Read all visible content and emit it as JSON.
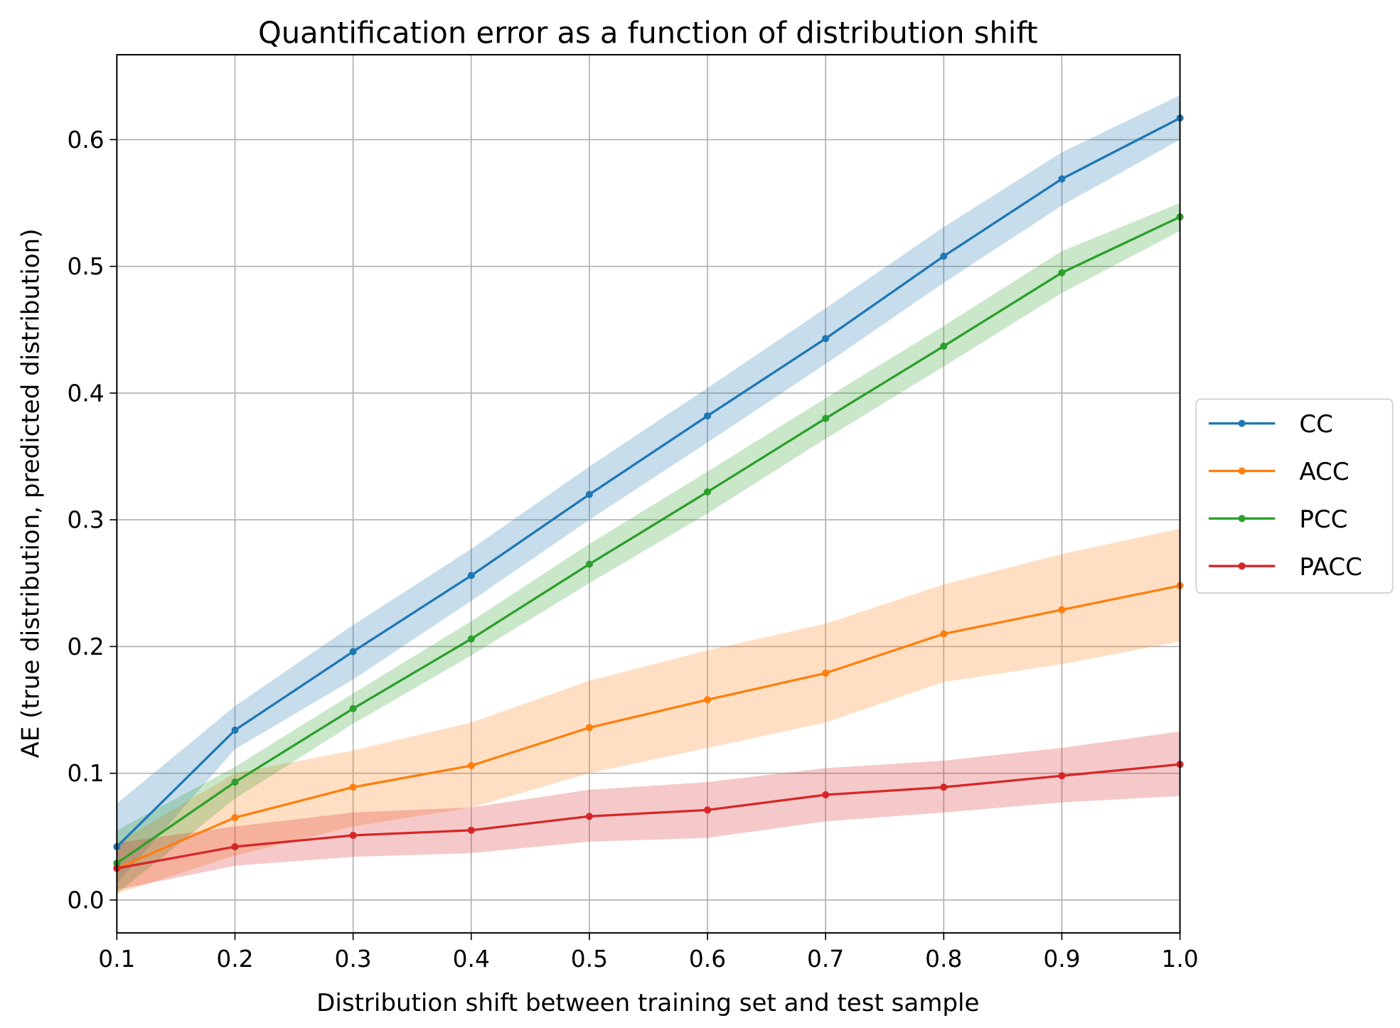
{
  "chart_data": {
    "type": "line",
    "title": "Quantification error as a function of distribution shift",
    "xlabel": "Distribution shift between training set and test sample",
    "ylabel": "AE (true distribution, predicted distribution)",
    "xlim": [
      0.1,
      1.0
    ],
    "ylim": [
      -0.026,
      0.667
    ],
    "grid": true,
    "legend_position": "right-outside",
    "x": [
      0.1,
      0.2,
      0.3,
      0.4,
      0.5,
      0.6,
      0.7,
      0.8,
      0.9,
      1.0
    ],
    "xticks": [
      "0.1",
      "0.2",
      "0.3",
      "0.4",
      "0.5",
      "0.6",
      "0.7",
      "0.8",
      "0.9",
      "1.0"
    ],
    "yticks": [
      {
        "value": 0.0,
        "label": "0.0"
      },
      {
        "value": 0.1,
        "label": "0.1"
      },
      {
        "value": 0.2,
        "label": "0.2"
      },
      {
        "value": 0.3,
        "label": "0.3"
      },
      {
        "value": 0.4,
        "label": "0.4"
      },
      {
        "value": 0.5,
        "label": "0.5"
      },
      {
        "value": 0.6,
        "label": "0.6"
      }
    ],
    "series": [
      {
        "name": "CC",
        "color": "#1f77b4",
        "values": [
          0.042,
          0.134,
          0.196,
          0.256,
          0.32,
          0.382,
          0.443,
          0.508,
          0.569,
          0.617
        ],
        "upper": [
          0.076,
          0.153,
          0.217,
          0.277,
          0.342,
          0.404,
          0.467,
          0.531,
          0.59,
          0.635
        ],
        "lower": [
          0.013,
          0.119,
          0.174,
          0.236,
          0.3,
          0.361,
          0.423,
          0.487,
          0.548,
          0.6
        ]
      },
      {
        "name": "ACC",
        "color": "#ff7f0e",
        "values": [
          0.025,
          0.065,
          0.089,
          0.106,
          0.136,
          0.158,
          0.179,
          0.21,
          0.229,
          0.248
        ],
        "upper": [
          0.045,
          0.1,
          0.118,
          0.14,
          0.173,
          0.197,
          0.218,
          0.249,
          0.273,
          0.293
        ],
        "lower": [
          0.005,
          0.035,
          0.058,
          0.073,
          0.1,
          0.12,
          0.14,
          0.172,
          0.186,
          0.204
        ]
      },
      {
        "name": "PCC",
        "color": "#2ca02c",
        "values": [
          0.029,
          0.093,
          0.151,
          0.206,
          0.265,
          0.322,
          0.38,
          0.437,
          0.495,
          0.539
        ],
        "upper": [
          0.055,
          0.105,
          0.163,
          0.22,
          0.281,
          0.338,
          0.396,
          0.453,
          0.512,
          0.55
        ],
        "lower": [
          0.005,
          0.08,
          0.139,
          0.193,
          0.25,
          0.305,
          0.364,
          0.421,
          0.479,
          0.528
        ]
      },
      {
        "name": "PACC",
        "color": "#d62728",
        "values": [
          0.025,
          0.042,
          0.051,
          0.055,
          0.066,
          0.071,
          0.083,
          0.089,
          0.098,
          0.107
        ],
        "upper": [
          0.045,
          0.058,
          0.069,
          0.073,
          0.087,
          0.093,
          0.104,
          0.11,
          0.12,
          0.133
        ],
        "lower": [
          0.008,
          0.027,
          0.034,
          0.037,
          0.046,
          0.049,
          0.062,
          0.069,
          0.077,
          0.082
        ]
      }
    ]
  }
}
